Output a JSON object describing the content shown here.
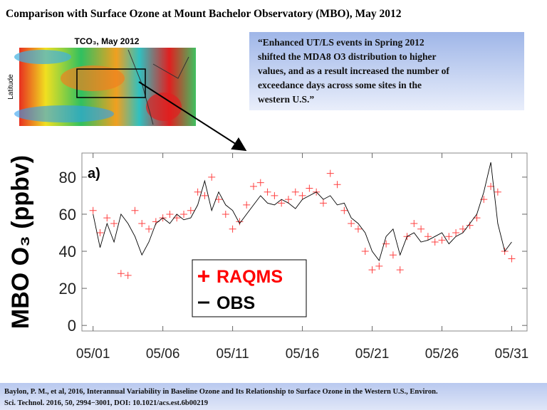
{
  "chart_data": {
    "type": "line",
    "title": "Comparison with Surface Ozone at Mount Bachelor Observatory (MBO), May 2012",
    "map_title": "TCO₃, May 2012",
    "map_ylabel": "Latitude",
    "quote_lines": [
      "“Enhanced UT/LS events in Spring 2012",
      "shifted the MDA8 O3 distribution to higher",
      "values, and as a result increased the number of",
      "exceedance days across some sites in the",
      "western U.S.”"
    ],
    "panel_label": "a)",
    "ylabel": "MBO O₃ (ppbv)",
    "footer_lines": [
      "Baylon, P. M., et al, 2016, Interannual Variability in Baseline Ozone and Its Relationship to Surface Ozone in the Western U.S., Environ.",
      "Sci. Technol. 2016, 50, 2994−3001, DOI: 10.1021/acs.est.6b00219"
    ],
    "x": [
      1,
      1.5,
      2,
      2.5,
      3,
      3.5,
      4,
      4.5,
      5,
      5.5,
      6,
      6.5,
      7,
      7.5,
      8,
      8.5,
      9,
      9.5,
      10,
      10.5,
      11,
      11.5,
      12,
      12.5,
      13,
      13.5,
      14,
      14.5,
      15,
      15.5,
      16,
      16.5,
      17,
      17.5,
      18,
      18.5,
      19,
      19.5,
      20,
      20.5,
      21,
      21.5,
      22,
      22.5,
      23,
      23.5,
      24,
      24.5,
      25,
      25.5,
      26,
      26.5,
      27,
      27.5,
      28,
      28.5,
      29,
      29.5,
      30,
      30.5,
      31
    ],
    "series": [
      {
        "name": "RAQMS",
        "color": "#ff0000",
        "marker": "plus",
        "values": [
          62,
          50,
          58,
          55,
          28,
          27,
          62,
          55,
          52,
          56,
          58,
          60,
          58,
          60,
          62,
          72,
          70,
          80,
          68,
          60,
          52,
          56,
          65,
          75,
          77,
          72,
          70,
          66,
          68,
          72,
          70,
          74,
          72,
          66,
          82,
          76,
          62,
          55,
          52,
          40,
          30,
          32,
          44,
          38,
          30,
          48,
          55,
          52,
          48,
          45,
          46,
          48,
          50,
          52,
          54,
          58,
          68,
          75,
          72,
          40,
          36
        ]
      },
      {
        "name": "OBS",
        "color": "#000000",
        "marker": "line",
        "values": [
          60,
          42,
          55,
          45,
          60,
          55,
          48,
          38,
          45,
          55,
          58,
          55,
          60,
          57,
          58,
          65,
          78,
          62,
          72,
          65,
          62,
          55,
          60,
          65,
          70,
          66,
          65,
          68,
          66,
          63,
          68,
          70,
          72,
          68,
          70,
          65,
          66,
          58,
          55,
          50,
          40,
          35,
          48,
          52,
          38,
          48,
          50,
          45,
          46,
          48,
          50,
          44,
          48,
          50,
          55,
          60,
          72,
          88,
          55,
          40,
          45
        ]
      }
    ],
    "xlim": [
      0.2,
      32.1
    ],
    "ylim": [
      -3,
      93
    ],
    "xticks": [
      {
        "value": 1,
        "label": "05/01"
      },
      {
        "value": 6,
        "label": "05/06"
      },
      {
        "value": 11,
        "label": "05/11"
      },
      {
        "value": 16,
        "label": "05/16"
      },
      {
        "value": 21,
        "label": "05/21"
      },
      {
        "value": 26,
        "label": "05/26"
      },
      {
        "value": 31,
        "label": "05/31"
      }
    ],
    "yticks": [
      0,
      20,
      40,
      60,
      80
    ]
  }
}
